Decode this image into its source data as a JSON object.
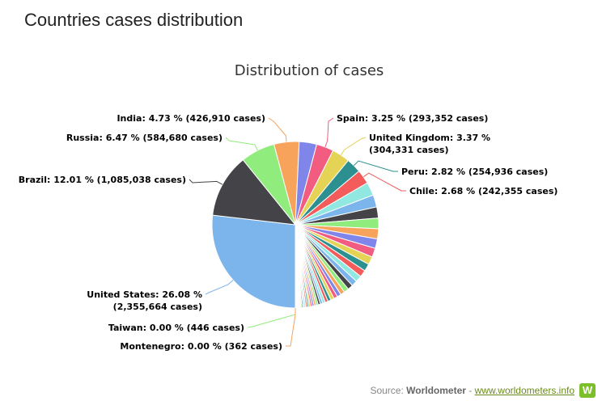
{
  "header": {
    "title": "Countries cases distribution"
  },
  "source": {
    "prefix": "Source:",
    "name": "Worldometer",
    "sep": "-",
    "link": "www.worldometers.info",
    "logo": "W"
  },
  "colors": {
    "brand_green": "#7bbf2a"
  },
  "chart_data": {
    "type": "pie",
    "title": "Distribution of cases",
    "slices": [
      {
        "name": "United States",
        "percent": 26.08,
        "cases": "2,355,664",
        "color": "#7cb5ec",
        "label": [
          "United States: 26.08 %",
          "(2,355,664 cases)"
        ]
      },
      {
        "name": "Brazil",
        "percent": 12.01,
        "cases": "1,085,038",
        "color": "#434348",
        "label": [
          "Brazil: 12.01 % (1,085,038 cases)"
        ]
      },
      {
        "name": "Russia",
        "percent": 6.47,
        "cases": "584,680",
        "color": "#90ed7d",
        "label": [
          "Russia: 6.47 % (584,680 cases)"
        ]
      },
      {
        "name": "India",
        "percent": 4.73,
        "cases": "426,910",
        "color": "#f7a35c",
        "label": [
          "India: 4.73 % (426,910 cases)"
        ]
      },
      {
        "name": "",
        "percent": 3.3,
        "color": "#8085e9"
      },
      {
        "name": "Spain",
        "percent": 3.25,
        "cases": "293,352",
        "color": "#f15c80",
        "label": [
          "Spain: 3.25 % (293,352 cases)"
        ]
      },
      {
        "name": "United Kingdom",
        "percent": 3.37,
        "cases": "304,331",
        "color": "#e4d354",
        "label": [
          "United Kingdom: 3.37 %",
          "(304,331 cases)"
        ]
      },
      {
        "name": "Peru",
        "percent": 2.82,
        "cases": "254,936",
        "color": "#2b908f",
        "label": [
          "Peru: 2.82 % (254,936 cases)"
        ]
      },
      {
        "name": "Chile",
        "percent": 2.68,
        "cases": "242,355",
        "color": "#f45b5b",
        "label": [
          "Chile: 2.68 % (242,355 cases)"
        ]
      },
      {
        "name": "",
        "percent": 2.5,
        "color": "#91e8e1"
      },
      {
        "name": "",
        "percent": 2.3,
        "color": "#7cb5ec"
      },
      {
        "name": "",
        "percent": 2.1,
        "color": "#434348"
      },
      {
        "name": "",
        "percent": 2.0,
        "color": "#90ed7d"
      },
      {
        "name": "",
        "percent": 1.9,
        "color": "#f7a35c"
      },
      {
        "name": "",
        "percent": 1.8,
        "color": "#8085e9"
      },
      {
        "name": "",
        "percent": 1.7,
        "color": "#f15c80"
      },
      {
        "name": "",
        "percent": 1.5,
        "color": "#e4d354"
      },
      {
        "name": "",
        "percent": 1.4,
        "color": "#2b908f"
      },
      {
        "name": "",
        "percent": 1.3,
        "color": "#f45b5b"
      },
      {
        "name": "",
        "percent": 1.2,
        "color": "#91e8e1"
      },
      {
        "name": "",
        "percent": 1.1,
        "color": "#7cb5ec"
      },
      {
        "name": "",
        "percent": 1.0,
        "color": "#434348"
      },
      {
        "name": "",
        "percent": 0.9,
        "color": "#90ed7d"
      },
      {
        "name": "",
        "percent": 0.8,
        "color": "#f7a35c"
      },
      {
        "name": "",
        "percent": 0.75,
        "color": "#8085e9"
      },
      {
        "name": "",
        "percent": 0.7,
        "color": "#f15c80"
      },
      {
        "name": "",
        "percent": 0.65,
        "color": "#e4d354"
      },
      {
        "name": "",
        "percent": 0.6,
        "color": "#2b908f"
      },
      {
        "name": "",
        "percent": 0.55,
        "color": "#f45b5b"
      },
      {
        "name": "",
        "percent": 0.5,
        "color": "#91e8e1"
      },
      {
        "name": "",
        "percent": 0.45,
        "color": "#7cb5ec"
      },
      {
        "name": "",
        "percent": 0.42,
        "color": "#434348"
      },
      {
        "name": "",
        "percent": 0.4,
        "color": "#90ed7d"
      },
      {
        "name": "",
        "percent": 0.38,
        "color": "#f7a35c"
      },
      {
        "name": "",
        "percent": 0.36,
        "color": "#8085e9"
      },
      {
        "name": "",
        "percent": 0.34,
        "color": "#f15c80"
      },
      {
        "name": "",
        "percent": 0.32,
        "color": "#e4d354"
      },
      {
        "name": "",
        "percent": 0.3,
        "color": "#2b908f"
      },
      {
        "name": "",
        "percent": 0.28,
        "color": "#f45b5b"
      },
      {
        "name": "",
        "percent": 0.26,
        "color": "#91e8e1"
      },
      {
        "name": "",
        "percent": 0.24,
        "color": "#7cb5ec"
      },
      {
        "name": "",
        "percent": 0.22,
        "color": "#434348"
      },
      {
        "name": "",
        "percent": 0.2,
        "color": "#90ed7d"
      },
      {
        "name": "",
        "percent": 0.18,
        "color": "#f7a35c"
      },
      {
        "name": "",
        "percent": 0.16,
        "color": "#8085e9"
      },
      {
        "name": "",
        "percent": 0.14,
        "color": "#f15c80"
      },
      {
        "name": "",
        "percent": 0.12,
        "color": "#e4d354"
      },
      {
        "name": "",
        "percent": 0.1,
        "color": "#2b908f"
      },
      {
        "name": "",
        "percent": 0.08,
        "color": "#f45b5b"
      },
      {
        "name": "",
        "percent": 0.06,
        "color": "#91e8e1"
      },
      {
        "name": "",
        "percent": 0.05,
        "color": "#7cb5ec"
      },
      {
        "name": "",
        "percent": 0.04,
        "color": "#434348"
      },
      {
        "name": "",
        "percent": 0.03,
        "color": "#90ed7d"
      },
      {
        "name": "",
        "percent": 0.02,
        "color": "#f7a35c"
      },
      {
        "name": "",
        "percent": 0.02,
        "color": "#8085e9"
      },
      {
        "name": "",
        "percent": 0.01,
        "color": "#f15c80"
      },
      {
        "name": "Taiwan",
        "percent": 0.0,
        "cases": "446",
        "color": "#90ed7d",
        "label": [
          "Taiwan: 0.00 % (446 cases)"
        ]
      },
      {
        "name": "Montenegro",
        "percent": 0.0,
        "cases": "362",
        "color": "#f7a35c",
        "label": [
          "Montenegro: 0.00 % (362 cases)"
        ]
      }
    ]
  }
}
